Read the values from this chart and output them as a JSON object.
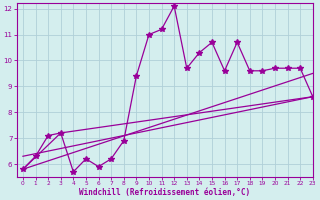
{
  "xlabel": "Windchill (Refroidissement éolien,°C)",
  "xlim": [
    -0.5,
    23
  ],
  "ylim": [
    5.5,
    12.2
  ],
  "yticks": [
    6,
    7,
    8,
    9,
    10,
    11,
    12
  ],
  "xticks": [
    0,
    1,
    2,
    3,
    4,
    5,
    6,
    7,
    8,
    9,
    10,
    11,
    12,
    13,
    14,
    15,
    16,
    17,
    18,
    19,
    20,
    21,
    22,
    23
  ],
  "bg_color": "#d4eeee",
  "grid_color": "#b0d0d8",
  "line_color": "#990099",
  "jagged_x": [
    0,
    1,
    2,
    3,
    4,
    5,
    6,
    7,
    8,
    9,
    10,
    11,
    12,
    13,
    14,
    15,
    16,
    17,
    18,
    19,
    20,
    21,
    22,
    23
  ],
  "jagged_y": [
    5.8,
    6.3,
    7.1,
    7.2,
    5.7,
    6.2,
    5.9,
    6.2,
    6.9,
    9.4,
    11.0,
    11.2,
    12.1,
    9.7,
    10.3,
    10.7,
    9.6,
    10.7,
    9.6,
    9.6,
    9.7,
    9.7,
    9.7,
    8.6
  ],
  "line1_x": [
    0,
    23
  ],
  "line1_y": [
    5.8,
    9.5
  ],
  "line2_x": [
    0,
    23
  ],
  "line2_y": [
    6.3,
    8.6
  ],
  "line3_x": [
    0,
    3,
    23
  ],
  "line3_y": [
    5.8,
    7.2,
    8.6
  ],
  "marker": "*",
  "markersize": 4
}
